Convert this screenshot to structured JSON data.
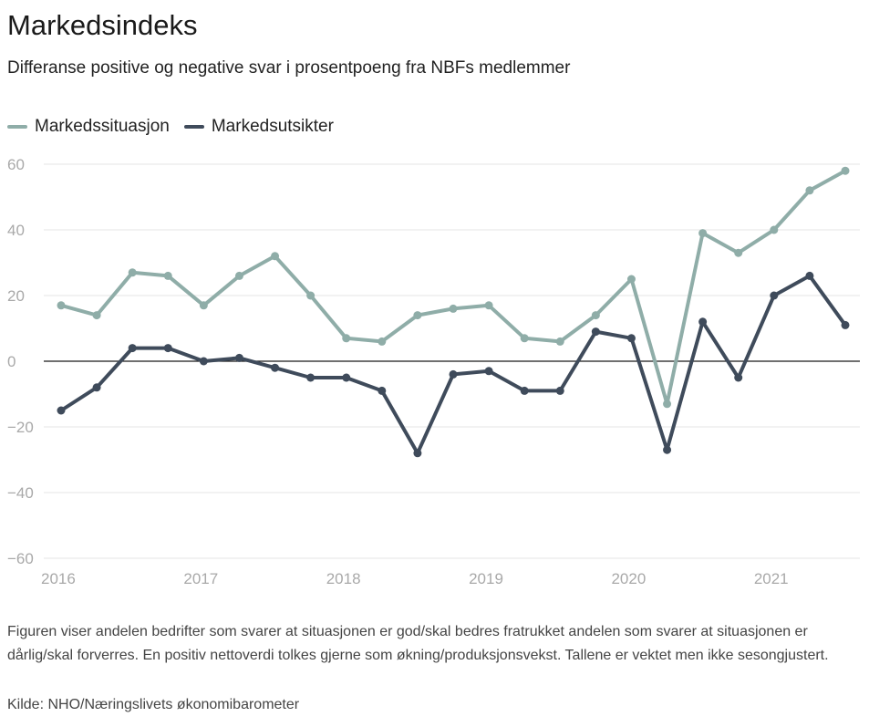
{
  "chart_data": {
    "type": "line",
    "title": "Markedsindeks",
    "subtitle": "Differanse positive og negative svar i prosentpoeng fra NBFs medlemmer",
    "xlabel": "",
    "ylabel": "",
    "ylim": [
      -60,
      60
    ],
    "yticks": [
      60,
      40,
      20,
      0,
      -20,
      -40,
      -60
    ],
    "ytick_labels": [
      "60",
      "40",
      "20",
      "0",
      "−20",
      "−40",
      "−60"
    ],
    "xlim": [
      2016,
      2021.75
    ],
    "xticks": [
      2016,
      2017,
      2018,
      2019,
      2020,
      2021
    ],
    "xtick_labels": [
      "2016",
      "2017",
      "2018",
      "2019",
      "2020",
      "2021"
    ],
    "legend_position": "top-left",
    "x": [
      2016.0,
      2016.25,
      2016.5,
      2016.75,
      2017.0,
      2017.25,
      2017.5,
      2017.75,
      2018.0,
      2018.25,
      2018.5,
      2018.75,
      2019.0,
      2019.25,
      2019.5,
      2019.75,
      2020.0,
      2020.25,
      2020.5,
      2020.75,
      2021.0,
      2021.25,
      2021.5
    ],
    "series": [
      {
        "name": "Markedssituasjon",
        "color": "#8fada8",
        "values": [
          17,
          14,
          27,
          26,
          17,
          26,
          32,
          20,
          7,
          6,
          14,
          16,
          17,
          7,
          6,
          14,
          25,
          -13,
          39,
          33,
          40,
          52,
          58
        ]
      },
      {
        "name": "Markedsutsikter",
        "color": "#3f4b5b",
        "values": [
          -15,
          -8,
          4,
          4,
          0,
          1,
          -2,
          -5,
          -5,
          -9,
          -28,
          -4,
          -3,
          -9,
          -9,
          9,
          7,
          -27,
          12,
          -5,
          20,
          26,
          11
        ]
      }
    ]
  },
  "footnote": "Figuren viser andelen bedrifter som svarer at situasjonen er god/skal bedres fratrukket andelen som svarer at situasjonen er dårlig/skal forverres. En positiv nettoverdi tolkes gjerne som økning/produksjonsvekst. Tallene er vektet men ikke sesongjustert.",
  "source": "Kilde: NHO/Næringslivets økonomibarometer"
}
